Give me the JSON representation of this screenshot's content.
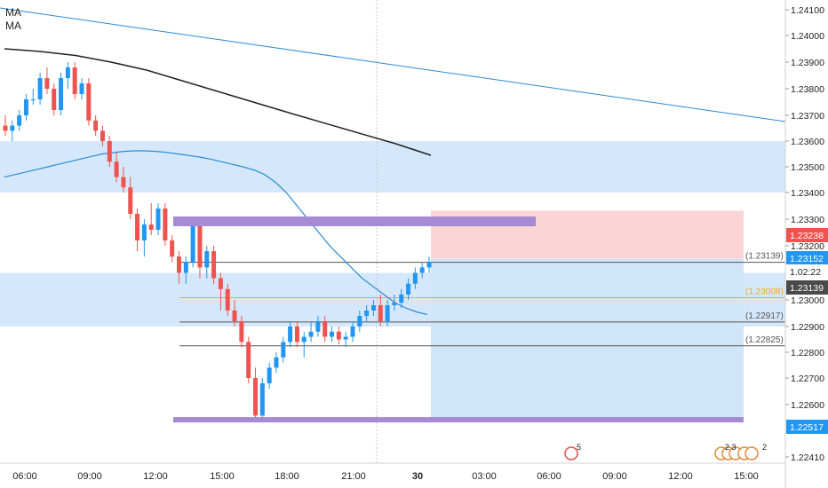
{
  "indicators": {
    "ma1": "MA",
    "ma2": "MA"
  },
  "chart_data": {
    "type": "candlestick",
    "title": "",
    "ylim": [
      1.2241,
      1.241
    ],
    "y_ticks": [
      "1.24100",
      "1.24000",
      "1.23900",
      "1.23800",
      "1.23700",
      "1.23600",
      "1.23500",
      "1.23400",
      "1.23300",
      "1.23200",
      "1.23000",
      "1.22900",
      "1.22800",
      "1.22700",
      "1.22600",
      "1.22410"
    ],
    "x_ticks": [
      "06:00",
      "09:00",
      "12:00",
      "15:00",
      "18:00",
      "21:00",
      "30",
      "03:00",
      "06:00",
      "09:00",
      "12:00",
      "15:00"
    ],
    "price_badges": [
      {
        "label": "1.23238",
        "color": "#ef5350"
      },
      {
        "label": "1.23152",
        "color": "#2196f3"
      },
      {
        "label": "1.02:22",
        "color": "#ffffff"
      },
      {
        "label": "1.23139",
        "color": "#4a4a4a"
      },
      {
        "label": "1.22517",
        "color": "#2196f3"
      }
    ],
    "level_labels": [
      {
        "label": "(1.23139)",
        "value": 1.23139,
        "color": "#555555"
      },
      {
        "label": "(1.23008)",
        "value": 1.23008,
        "color": "#f5a623"
      },
      {
        "label": "(1.22917)",
        "value": 1.22917,
        "color": "#555555"
      },
      {
        "label": "(1.22825)",
        "value": 1.22825,
        "color": "#555555"
      }
    ],
    "zones": [
      {
        "name": "supply-zone",
        "from": 1.234,
        "to": 1.236,
        "color": "#d5e8fb"
      },
      {
        "name": "demand-zone",
        "from": 1.229,
        "to": 1.231,
        "color": "#d5e8fb"
      }
    ],
    "purple_levels": [
      1.2329,
      1.22545
    ],
    "trade": {
      "entry": 1.23152,
      "target": 1.23238,
      "stop": 1.22545
    },
    "badges": {
      "event": "5",
      "news1": "2 3",
      "news2": "2"
    },
    "candles": [
      [
        1.2366,
        1.237,
        1.2362,
        1.2364
      ],
      [
        1.2364,
        1.2368,
        1.236,
        1.2366
      ],
      [
        1.2366,
        1.2372,
        1.2364,
        1.237
      ],
      [
        1.237,
        1.2378,
        1.2368,
        1.2376
      ],
      [
        1.2376,
        1.238,
        1.2374,
        1.2376
      ],
      [
        1.2376,
        1.2386,
        1.2374,
        1.2384
      ],
      [
        1.2384,
        1.2388,
        1.2378,
        1.238
      ],
      [
        1.238,
        1.2382,
        1.237,
        1.2372
      ],
      [
        1.2372,
        1.2386,
        1.237,
        1.2384
      ],
      [
        1.2384,
        1.239,
        1.238,
        1.2388
      ],
      [
        1.2388,
        1.239,
        1.2376,
        1.2378
      ],
      [
        1.2378,
        1.2384,
        1.2376,
        1.2382
      ],
      [
        1.2382,
        1.2384,
        1.2366,
        1.2368
      ],
      [
        1.2368,
        1.237,
        1.2362,
        1.2364
      ],
      [
        1.2364,
        1.2366,
        1.2358,
        1.236
      ],
      [
        1.236,
        1.2362,
        1.235,
        1.2352
      ],
      [
        1.2352,
        1.2356,
        1.2344,
        1.2346
      ],
      [
        1.2346,
        1.235,
        1.234,
        1.2342
      ],
      [
        1.2342,
        1.2346,
        1.233,
        1.2332
      ],
      [
        1.2332,
        1.2334,
        1.2318,
        1.2322
      ],
      [
        1.2322,
        1.233,
        1.2316,
        1.2328
      ],
      [
        1.2328,
        1.2336,
        1.2324,
        1.2326
      ],
      [
        1.2326,
        1.2336,
        1.2324,
        1.2334
      ],
      [
        1.2334,
        1.2336,
        1.232,
        1.2322
      ],
      [
        1.2322,
        1.2324,
        1.2314,
        1.2316
      ],
      [
        1.2316,
        1.2318,
        1.2306,
        1.231
      ],
      [
        1.231,
        1.2316,
        1.2306,
        1.2314
      ],
      [
        1.2314,
        1.233,
        1.2312,
        1.2328
      ],
      [
        1.2328,
        1.233,
        1.2308,
        1.2312
      ],
      [
        1.2312,
        1.232,
        1.2308,
        1.2318
      ],
      [
        1.2318,
        1.232,
        1.2306,
        1.2308
      ],
      [
        1.2308,
        1.231,
        1.2296,
        1.2304
      ],
      [
        1.2304,
        1.2306,
        1.2294,
        1.2296
      ],
      [
        1.2296,
        1.23,
        1.229,
        1.2292
      ],
      [
        1.2292,
        1.2294,
        1.2282,
        1.2284
      ],
      [
        1.2284,
        1.2286,
        1.2268,
        1.227
      ],
      [
        1.227,
        1.2274,
        1.2254,
        1.2256
      ],
      [
        1.2256,
        1.227,
        1.2254,
        1.2268
      ],
      [
        1.2268,
        1.2276,
        1.2266,
        1.2274
      ],
      [
        1.2274,
        1.228,
        1.2272,
        1.2278
      ],
      [
        1.2278,
        1.2286,
        1.2276,
        1.2284
      ],
      [
        1.2284,
        1.2292,
        1.2282,
        1.229
      ],
      [
        1.229,
        1.2292,
        1.2282,
        1.2284
      ],
      [
        1.2284,
        1.2288,
        1.2278,
        1.2286
      ],
      [
        1.2286,
        1.2292,
        1.2284,
        1.2288
      ],
      [
        1.2288,
        1.2294,
        1.2286,
        1.2292
      ],
      [
        1.2292,
        1.2294,
        1.2284,
        1.2286
      ],
      [
        1.2286,
        1.229,
        1.2284,
        1.2288
      ],
      [
        1.2288,
        1.229,
        1.2283,
        1.2285
      ],
      [
        1.2285,
        1.2288,
        1.2282,
        1.2286
      ],
      [
        1.2286,
        1.2292,
        1.2284,
        1.229
      ],
      [
        1.229,
        1.2296,
        1.2288,
        1.2294
      ],
      [
        1.2294,
        1.2298,
        1.2292,
        1.2296
      ],
      [
        1.2296,
        1.23,
        1.2294,
        1.2298
      ],
      [
        1.2298,
        1.2302,
        1.229,
        1.2292
      ],
      [
        1.2292,
        1.23,
        1.229,
        1.2298
      ],
      [
        1.2298,
        1.2302,
        1.2296,
        1.2299
      ],
      [
        1.2299,
        1.2304,
        1.2297,
        1.2302
      ],
      [
        1.2302,
        1.2308,
        1.23,
        1.2306
      ],
      [
        1.2306,
        1.2312,
        1.2304,
        1.231
      ],
      [
        1.231,
        1.2314,
        1.2308,
        1.2312
      ],
      [
        1.2312,
        1.2316,
        1.231,
        1.23139
      ]
    ],
    "ma_fast": [
      1.2346,
      1.2347,
      1.2348,
      1.2349,
      1.235,
      1.2351,
      1.2352,
      1.2353,
      1.2354,
      1.2355,
      1.23555,
      1.2356,
      1.23562,
      1.23562,
      1.2356,
      1.23556,
      1.2355,
      1.23544,
      1.23538,
      1.2353,
      1.2352,
      1.2351,
      1.235,
      1.23488,
      1.2347,
      1.2344,
      1.234,
      1.2335,
      1.233,
      1.2325,
      1.232,
      1.2316,
      1.2312,
      1.2308,
      1.2305,
      1.2302,
      1.2299,
      1.2297,
      1.22955,
      1.22945
    ],
    "ma_slow": [
      1.2395,
      1.2394,
      1.23925,
      1.239,
      1.2387,
      1.2383,
      1.2379,
      1.2375,
      1.2371,
      1.2367,
      1.2363,
      1.2359,
      1.23545
    ]
  }
}
